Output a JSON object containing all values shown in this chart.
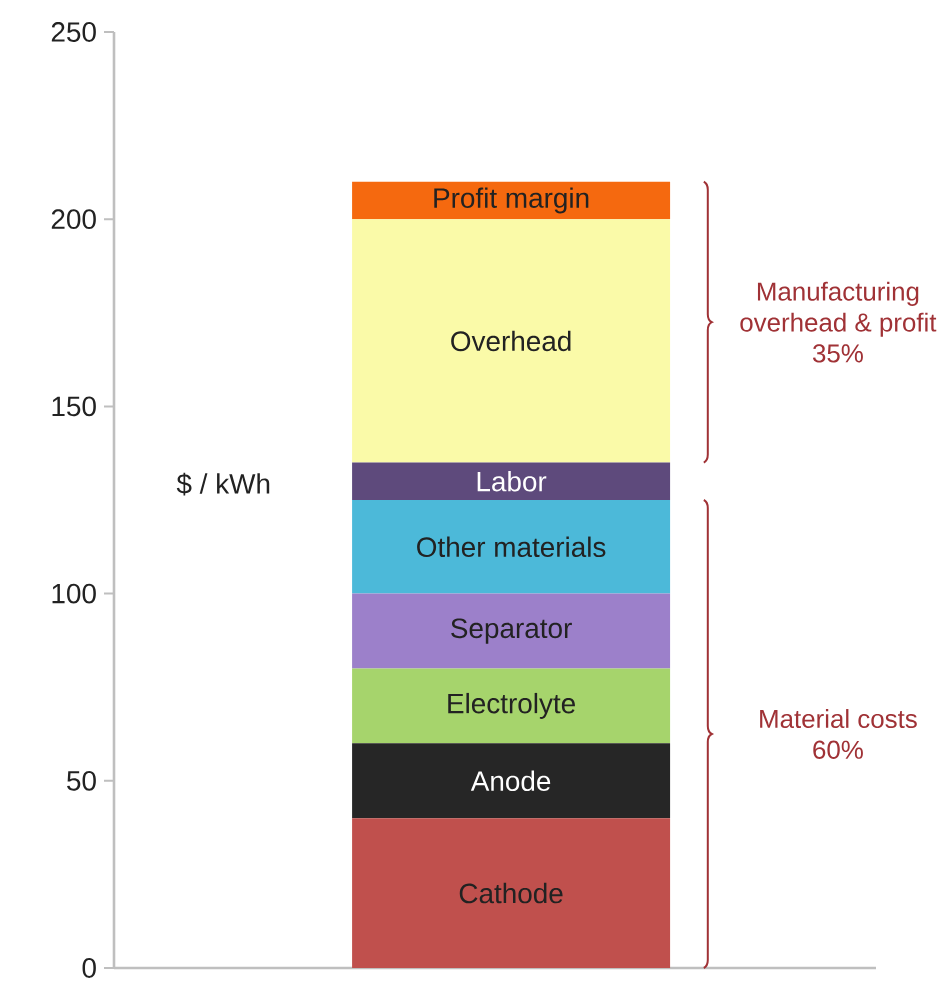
{
  "chart_data": {
    "type": "bar",
    "stacked": true,
    "categories": [
      null
    ],
    "ylabel": "$ / kWh",
    "ylim": [
      0,
      250
    ],
    "yticks": [
      0,
      50,
      100,
      150,
      200,
      250
    ],
    "tick_labels": "y",
    "series": [
      {
        "name": "Cathode",
        "color": "#c0504d",
        "values": [
          40
        ]
      },
      {
        "name": "Anode",
        "color": "#262626",
        "values": [
          20
        ]
      },
      {
        "name": "Electrolyte",
        "color": "#a6d46c",
        "values": [
          20
        ]
      },
      {
        "name": "Separator",
        "color": "#9c80ca",
        "values": [
          20
        ]
      },
      {
        "name": "Other materials",
        "color": "#4cb9d9",
        "values": [
          25
        ]
      },
      {
        "name": "Labor",
        "color": "#5e4a7c",
        "values": [
          10
        ]
      },
      {
        "name": "Overhead",
        "color": "#fafaa8",
        "values": [
          65
        ]
      },
      {
        "name": "Profit margin",
        "color": "#f5690f",
        "values": [
          10
        ]
      }
    ],
    "annotations": [
      "Manufacturing overhead & profit 35%",
      "Material costs 60%"
    ]
  }
}
